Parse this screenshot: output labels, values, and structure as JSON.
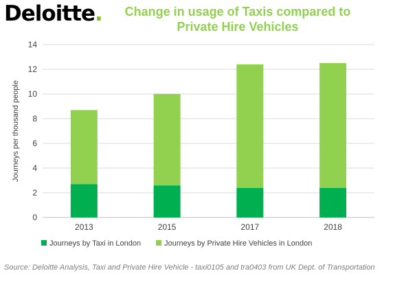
{
  "brand": {
    "name": "Deloitte",
    "dot": ".",
    "dot_color": "#86bc25"
  },
  "source_note": "Source: Deloitte Analysis, Taxi and Private Hire Vehicle - taxi0105 and tra0403 from UK Dept. of Transportation",
  "chart_data": {
    "type": "bar",
    "stacked": true,
    "title": "Change in usage of Taxis compared to Private Hire Vehicles",
    "xlabel": "",
    "ylabel": "Journeys per thousand people",
    "categories": [
      "2013",
      "2015",
      "2017",
      "2018"
    ],
    "series": [
      {
        "name": "Journeys by Taxi in London",
        "color": "#00b050",
        "values": [
          2.7,
          2.6,
          2.4,
          2.4
        ]
      },
      {
        "name": "Journeys by Private Hire Vehicles in London",
        "color": "#92d050",
        "values": [
          6.0,
          7.4,
          10.0,
          10.1
        ]
      }
    ],
    "ylim": [
      0,
      14
    ],
    "yticks": [
      0,
      2,
      4,
      6,
      8,
      10,
      12,
      14
    ],
    "grid": true,
    "legend": "bottom"
  }
}
